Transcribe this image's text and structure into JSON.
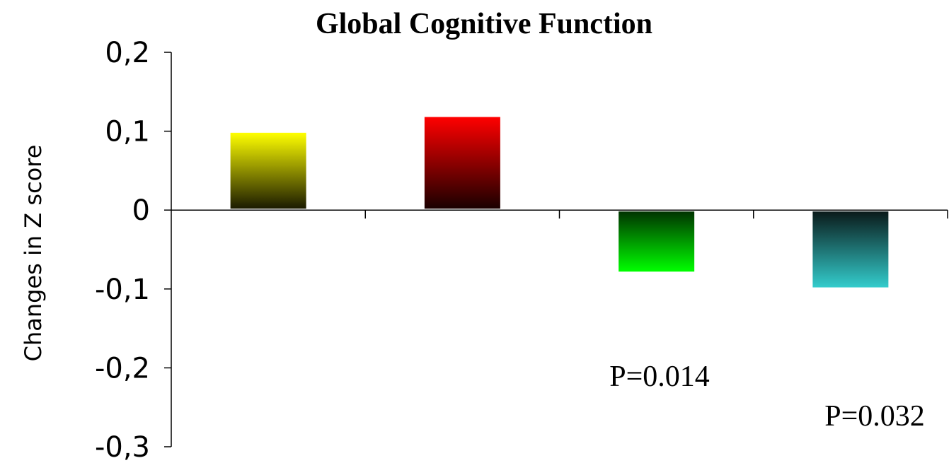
{
  "chart_data": {
    "type": "bar",
    "title": "Global Cognitive Function",
    "ylabel": "Changes in Z score",
    "xlabel": "",
    "categories": [
      "",
      "",
      "",
      ""
    ],
    "values": [
      0.098,
      0.118,
      -0.078,
      -0.098
    ],
    "ylim": [
      -0.3,
      0.2
    ],
    "yticks": [
      0.2,
      0.1,
      0,
      -0.1,
      -0.2,
      -0.3
    ],
    "ytick_labels": [
      "0,2",
      "0,1",
      "0",
      "-0,1",
      "-0,2",
      "-0,3"
    ],
    "grid": false,
    "bar_colors": [
      {
        "top": "#ffff00",
        "bottom": "#1a1a00"
      },
      {
        "top": "#ff0000",
        "bottom": "#1a0000"
      },
      {
        "top": "#003300",
        "bottom": "#00ff00"
      },
      {
        "top": "#0a1a1a",
        "bottom": "#33cccc"
      }
    ],
    "annotations": [
      {
        "text": "P=0.014",
        "bar_index": 2
      },
      {
        "text": "P=0.032",
        "bar_index": 3
      }
    ]
  }
}
